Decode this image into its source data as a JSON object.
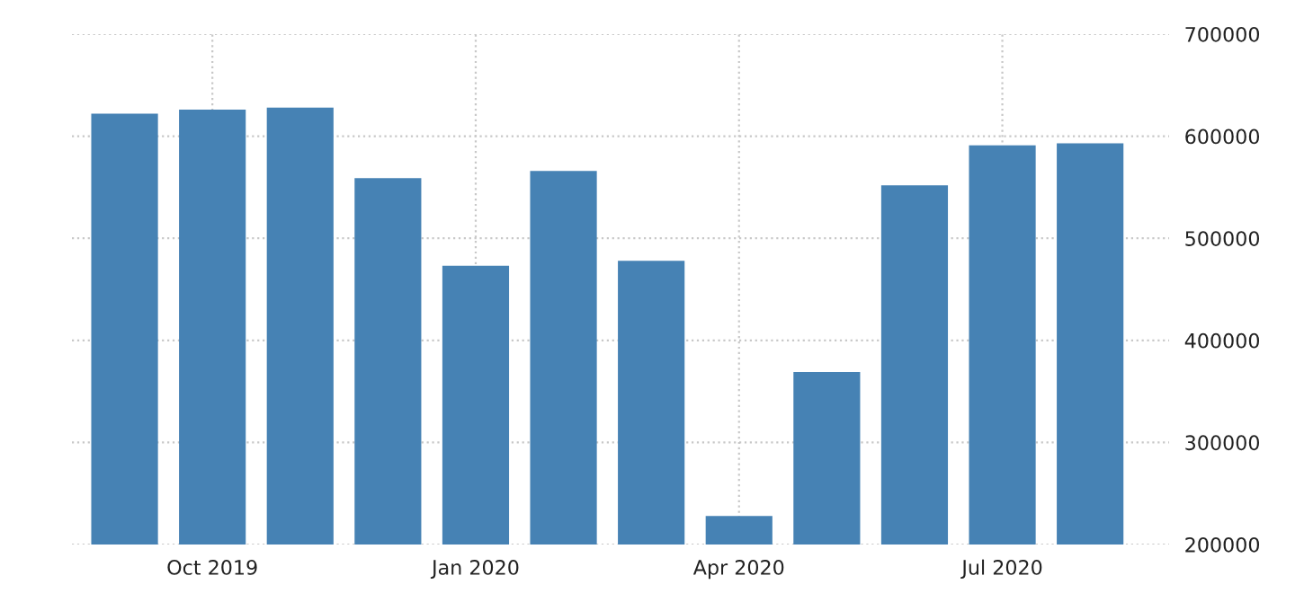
{
  "chart_data": {
    "type": "bar",
    "categories": [
      null,
      "Oct 2019",
      null,
      null,
      "Jan 2020",
      null,
      null,
      "Apr 2020",
      null,
      null,
      "Jul 2020",
      null
    ],
    "values": [
      622000,
      626000,
      628000,
      559000,
      473000,
      566000,
      478000,
      228000,
      369000,
      552000,
      591000,
      593000
    ],
    "color": "#4682b4",
    "ylim": [
      200000,
      700000
    ],
    "yticks": [
      200000,
      300000,
      400000,
      500000,
      600000,
      700000
    ],
    "grid": true
  }
}
